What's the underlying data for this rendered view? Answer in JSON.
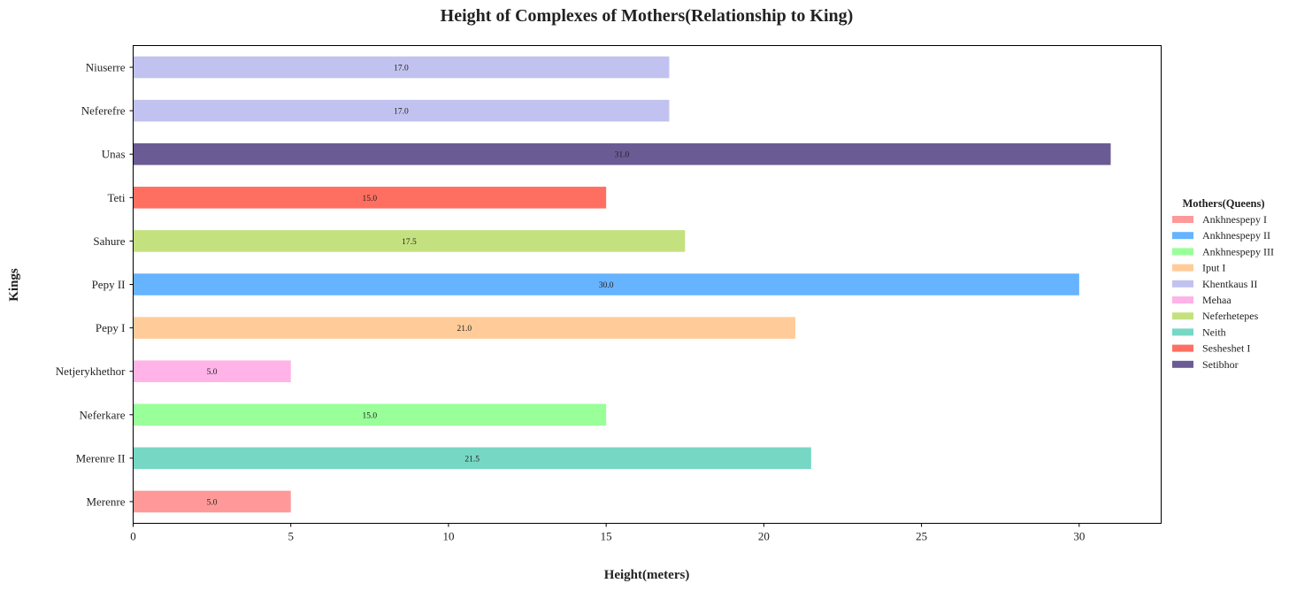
{
  "chart_data": {
    "type": "bar",
    "orientation": "horizontal",
    "title": "Height of Complexes of Mothers(Relationship to King)",
    "xlabel": "Height(meters)",
    "ylabel": "Kings",
    "xlim": [
      0,
      32.6
    ],
    "xticks": [
      0,
      5,
      10,
      15,
      20,
      25,
      30
    ],
    "grid": false,
    "legend": {
      "title": "Mothers(Queens)",
      "placement": "right",
      "entries": [
        {
          "label": "Ankhnespepy I",
          "color": "#ff9999"
        },
        {
          "label": "Ankhnespepy II",
          "color": "#66b3ff"
        },
        {
          "label": "Ankhnespepy III",
          "color": "#99ff99"
        },
        {
          "label": "Iput I",
          "color": "#ffcc99"
        },
        {
          "label": "Khentkaus II",
          "color": "#c2c2f0"
        },
        {
          "label": "Mehaa",
          "color": "#ffb3e6"
        },
        {
          "label": "Neferhetepes",
          "color": "#c4e17f"
        },
        {
          "label": "Neith",
          "color": "#76d7c4"
        },
        {
          "label": "Sesheshet I",
          "color": "#ff6f61"
        },
        {
          "label": "Setibhor",
          "color": "#6b5b95"
        }
      ]
    },
    "bars": [
      {
        "category": "Merenre",
        "value": 5.0,
        "label": "5.0",
        "mother": "Ankhnespepy I"
      },
      {
        "category": "Merenre II",
        "value": 21.5,
        "label": "21.5",
        "mother": "Neith"
      },
      {
        "category": "Neferkare",
        "value": 15.0,
        "label": "15.0",
        "mother": "Ankhnespepy III"
      },
      {
        "category": "Netjerykhethor",
        "value": 5.0,
        "label": "5.0",
        "mother": "Mehaa"
      },
      {
        "category": "Pepy I",
        "value": 21.0,
        "label": "21.0",
        "mother": "Iput I"
      },
      {
        "category": "Pepy II",
        "value": 30.0,
        "label": "30.0",
        "mother": "Ankhnespepy II"
      },
      {
        "category": "Sahure",
        "value": 17.5,
        "label": "17.5",
        "mother": "Neferhetepes"
      },
      {
        "category": "Teti",
        "value": 15.0,
        "label": "15.0",
        "mother": "Sesheshet I"
      },
      {
        "category": "Unas",
        "value": 31.0,
        "label": "31.0",
        "mother": "Setibhor"
      },
      {
        "category": "Neferefre ",
        "value": 17.0,
        "label": "17.0",
        "mother": "Khentkaus II"
      },
      {
        "category": "Niuserre",
        "value": 17.0,
        "label": "17.0",
        "mother": "Khentkaus II"
      }
    ]
  }
}
